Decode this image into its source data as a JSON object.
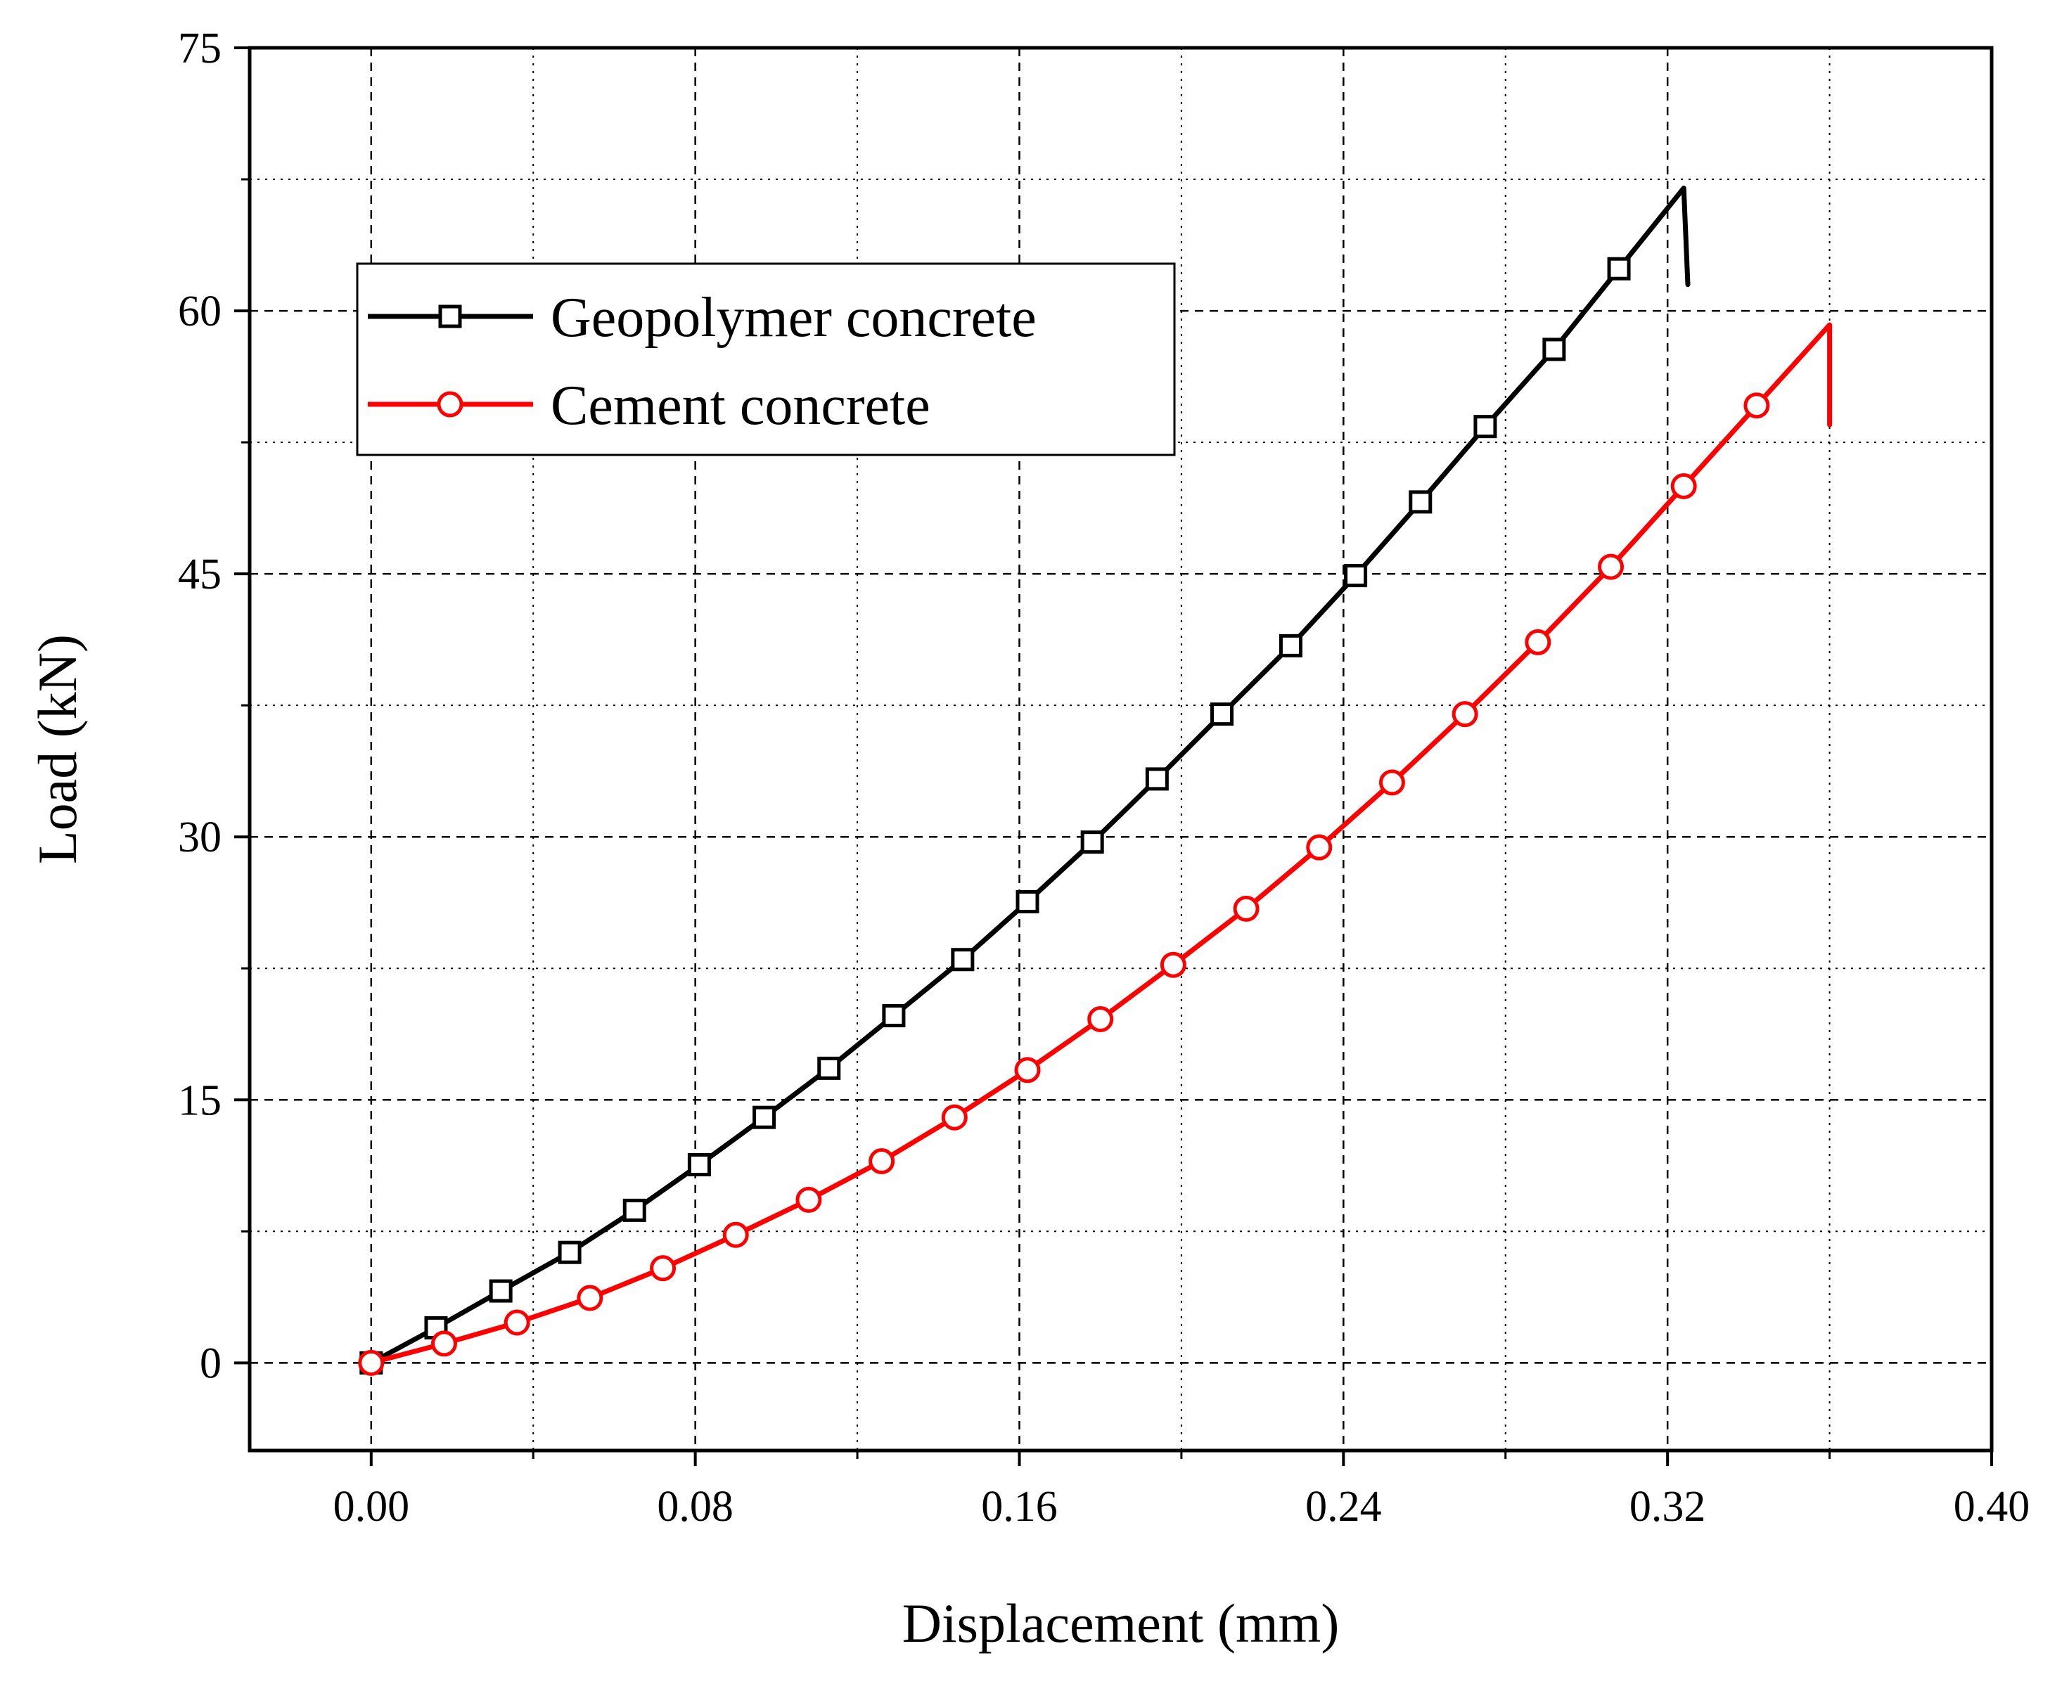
{
  "chart_data": {
    "type": "line",
    "title": "",
    "xlabel": "Displacement (mm)",
    "ylabel": "Load (kN)",
    "xlim": [
      -0.03,
      0.4
    ],
    "ylim": [
      -5,
      75
    ],
    "xticks": [
      0.0,
      0.08,
      0.16,
      0.24,
      0.32,
      0.4
    ],
    "xtick_labels": [
      "0.00",
      "0.08",
      "0.16",
      "0.24",
      "0.32",
      "0.40"
    ],
    "yticks": [
      0,
      15,
      30,
      45,
      60,
      75
    ],
    "ytick_labels": [
      "0",
      "15",
      "30",
      "45",
      "60",
      "75"
    ],
    "grid": true,
    "legend_position": "upper-left",
    "series": [
      {
        "name": "Geopolymer concrete",
        "color": "#000000",
        "marker": "square",
        "x": [
          0.0,
          0.016,
          0.032,
          0.049,
          0.065,
          0.081,
          0.097,
          0.113,
          0.129,
          0.146,
          0.162,
          0.178,
          0.194,
          0.21,
          0.227,
          0.243,
          0.259,
          0.275,
          0.292,
          0.308,
          0.324,
          0.325
        ],
        "y": [
          0.0,
          2.0,
          4.1,
          6.3,
          8.7,
          11.3,
          14.0,
          16.8,
          19.8,
          23.0,
          26.3,
          29.7,
          33.3,
          37.0,
          40.9,
          44.9,
          49.1,
          53.4,
          57.8,
          62.4,
          67.0,
          61.5
        ],
        "marker_x": [
          0.0,
          0.016,
          0.032,
          0.049,
          0.065,
          0.081,
          0.097,
          0.113,
          0.129,
          0.146,
          0.162,
          0.178,
          0.194,
          0.21,
          0.227,
          0.243,
          0.259,
          0.275,
          0.292,
          0.308
        ],
        "marker_y": [
          0.0,
          2.0,
          4.1,
          6.3,
          8.7,
          11.3,
          14.0,
          16.8,
          19.8,
          23.0,
          26.3,
          29.7,
          33.3,
          37.0,
          40.9,
          44.9,
          49.1,
          53.4,
          57.8,
          62.4
        ]
      },
      {
        "name": "Cement concrete",
        "color": "#ff0000",
        "marker": "circle",
        "x": [
          0.0,
          0.018,
          0.036,
          0.054,
          0.072,
          0.09,
          0.108,
          0.126,
          0.144,
          0.162,
          0.18,
          0.198,
          0.216,
          0.234,
          0.252,
          0.27,
          0.288,
          0.306,
          0.324,
          0.342,
          0.36,
          0.36
        ],
        "y": [
          0.0,
          1.1,
          2.3,
          3.7,
          5.4,
          7.3,
          9.3,
          11.5,
          14.0,
          16.7,
          19.6,
          22.7,
          25.9,
          29.4,
          33.1,
          37.0,
          41.1,
          45.4,
          50.0,
          54.6,
          59.2,
          53.5
        ],
        "marker_x": [
          0.0,
          0.018,
          0.036,
          0.054,
          0.072,
          0.09,
          0.108,
          0.126,
          0.144,
          0.162,
          0.18,
          0.198,
          0.216,
          0.234,
          0.252,
          0.27,
          0.288,
          0.306,
          0.324,
          0.342
        ],
        "marker_y": [
          0.0,
          1.1,
          2.3,
          3.7,
          5.4,
          7.3,
          9.3,
          11.5,
          14.0,
          16.7,
          19.6,
          22.7,
          25.9,
          29.4,
          33.1,
          37.0,
          41.1,
          45.4,
          50.0,
          54.6
        ]
      }
    ]
  }
}
